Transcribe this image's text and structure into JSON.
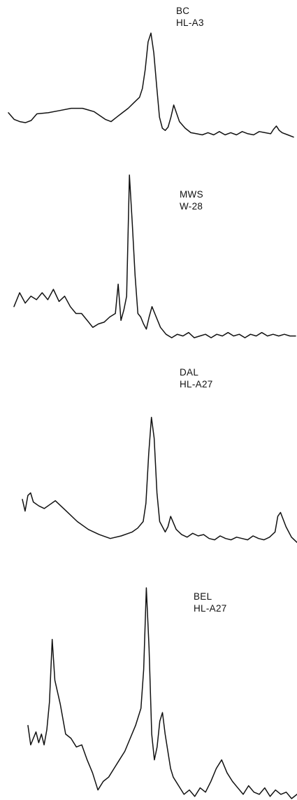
{
  "chart_data": {
    "type": "line",
    "stroke_color": "#111111",
    "background": "#ffffff",
    "grid": false,
    "x_domain": [
      0,
      100
    ],
    "y_domain": [
      0,
      100
    ],
    "panels": [
      {
        "label_lines": [
          "BC",
          "HL-A3"
        ],
        "series": [
          {
            "x": [
              0,
              2,
              4,
              6,
              8,
              10,
              14,
              18,
              22,
              26,
              30,
              34,
              36,
              38,
              40,
              42,
              44,
              46,
              47,
              48,
              49,
              50,
              51,
              52,
              53,
              54,
              55,
              56,
              57,
              58,
              60,
              62,
              64,
              66,
              68,
              70,
              72,
              74,
              76,
              78,
              80,
              82,
              84,
              86,
              88,
              90,
              92,
              93,
              94,
              95,
              96,
              98,
              100
            ],
            "y": [
              26,
              20,
              18,
              17,
              19,
              25,
              26,
              28,
              30,
              30,
              27,
              20,
              18,
              22,
              26,
              30,
              35,
              40,
              48,
              65,
              90,
              98,
              80,
              50,
              22,
              12,
              10,
              13,
              22,
              33,
              18,
              12,
              8,
              7,
              6,
              8,
              6,
              9,
              6,
              8,
              6,
              9,
              7,
              6,
              9,
              8,
              7,
              11,
              14,
              10,
              8,
              6,
              4
            ]
          }
        ]
      },
      {
        "label_lines": [
          "MWS",
          "W-28"
        ],
        "series": [
          {
            "x": [
              0,
              2,
              4,
              6,
              8,
              10,
              12,
              14,
              16,
              18,
              20,
              22,
              24,
              26,
              28,
              30,
              32,
              34,
              36,
              37,
              38,
              39,
              40,
              41,
              42,
              43,
              44,
              45,
              46,
              47,
              48,
              49,
              50,
              52,
              54,
              56,
              58,
              60,
              62,
              64,
              66,
              68,
              70,
              72,
              74,
              76,
              78,
              80,
              82,
              84,
              86,
              88,
              90,
              92,
              94,
              96,
              98,
              100
            ],
            "y": [
              22,
              30,
              24,
              28,
              26,
              30,
              26,
              32,
              25,
              28,
              22,
              18,
              18,
              14,
              10,
              12,
              13,
              16,
              18,
              35,
              14,
              20,
              28,
              98,
              70,
              40,
              18,
              16,
              12,
              9,
              16,
              22,
              18,
              10,
              6,
              4,
              6,
              5,
              7,
              4,
              5,
              6,
              4,
              6,
              5,
              7,
              5,
              6,
              4,
              6,
              5,
              7,
              5,
              6,
              5,
              6,
              5,
              5
            ]
          }
        ]
      },
      {
        "label_lines": [
          "DAL",
          "HL-A27"
        ],
        "series": [
          {
            "x": [
              0,
              1,
              2,
              3,
              4,
              6,
              8,
              10,
              12,
              16,
              20,
              24,
              28,
              32,
              36,
              40,
              42,
              44,
              45,
              46,
              47,
              48,
              49,
              50,
              52,
              53,
              54,
              56,
              58,
              60,
              62,
              64,
              66,
              68,
              70,
              72,
              74,
              76,
              78,
              80,
              82,
              84,
              86,
              88,
              90,
              92,
              93,
              94,
              96,
              98,
              100
            ],
            "y": [
              35,
              26,
              38,
              40,
              33,
              30,
              28,
              31,
              34,
              26,
              18,
              12,
              8,
              5,
              7,
              10,
              13,
              18,
              32,
              70,
              98,
              82,
              40,
              18,
              10,
              14,
              22,
              12,
              8,
              6,
              9,
              7,
              8,
              5,
              4,
              7,
              5,
              4,
              6,
              5,
              4,
              7,
              5,
              4,
              6,
              10,
              22,
              25,
              14,
              6,
              2
            ]
          }
        ]
      },
      {
        "label_lines": [
          "BEL",
          "HL-A27"
        ],
        "series": [
          {
            "x": [
              0,
              1,
              2,
              3,
              4,
              5,
              6,
              7,
              8,
              9,
              10,
              12,
              14,
              16,
              18,
              20,
              22,
              24,
              26,
              28,
              30,
              32,
              34,
              36,
              38,
              40,
              42,
              43,
              44,
              45,
              46,
              47,
              48,
              49,
              50,
              51,
              52,
              53,
              54,
              56,
              58,
              60,
              62,
              64,
              66,
              68,
              70,
              72,
              74,
              76,
              78,
              80,
              82,
              84,
              86,
              88,
              90,
              92,
              94,
              96,
              98,
              100
            ],
            "y": [
              34,
              25,
              28,
              31,
              26,
              30,
              25,
              32,
              45,
              74,
              55,
              44,
              30,
              28,
              24,
              25,
              18,
              12,
              4,
              8,
              10,
              14,
              18,
              22,
              28,
              34,
              42,
              60,
              98,
              70,
              30,
              18,
              24,
              36,
              40,
              30,
              22,
              14,
              10,
              6,
              2,
              4,
              1,
              5,
              3,
              8,
              14,
              18,
              12,
              8,
              5,
              2,
              6,
              3,
              2,
              5,
              1,
              4,
              2,
              3,
              0,
              2
            ]
          }
        ]
      }
    ]
  }
}
